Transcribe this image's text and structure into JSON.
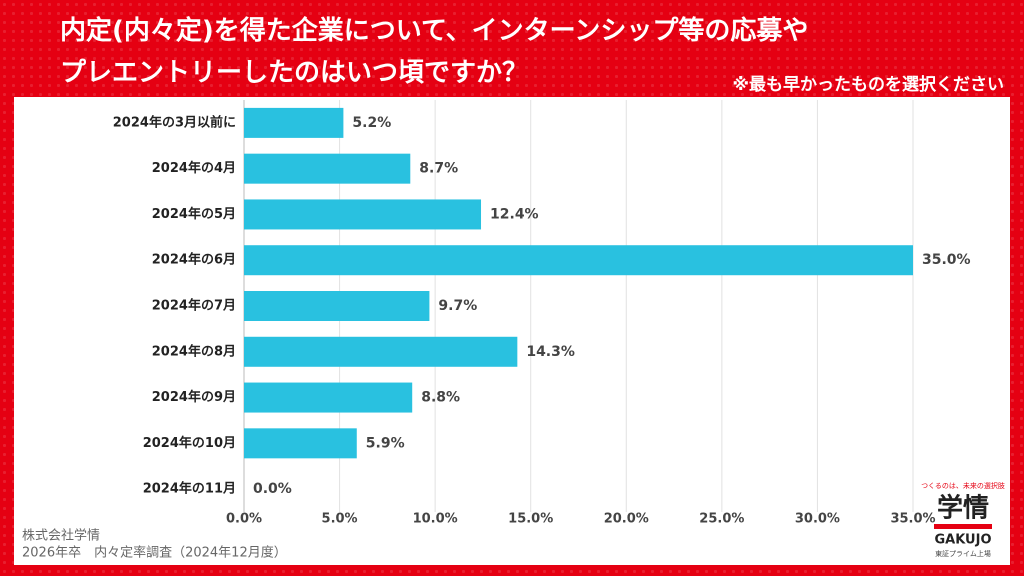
{
  "chart_data": {
    "type": "hbar",
    "title": [
      "内定(内々定)を得た企業について、インターンシップ等の応募や",
      "プレエントリーしたのはいつ頃ですか？"
    ],
    "subtitle": "※最も早かったものを選択ください",
    "categories": [
      "2024年の3月以前に",
      "2024年の4月",
      "2024年の5月",
      "2024年の6月",
      "2024年の7月",
      "2024年の8月",
      "2024年の9月",
      "2024年の10月",
      "2024年の11月"
    ],
    "values": [
      5.2,
      8.7,
      12.4,
      35.0,
      9.7,
      14.3,
      8.8,
      5.9,
      0.0
    ],
    "value_labels": [
      "5.2%",
      "8.7%",
      "12.4%",
      "35.0%",
      "9.7%",
      "14.3%",
      "8.8%",
      "5.9%",
      "0.0%"
    ],
    "color": "#29c1e0",
    "xlim": [
      0,
      35
    ],
    "xticks": [
      {
        "value": 0,
        "label": "0.0%"
      },
      {
        "value": 5,
        "label": "5.0%"
      },
      {
        "value": 10,
        "label": "10.0%"
      },
      {
        "value": 15,
        "label": "15.0%"
      },
      {
        "value": 20,
        "label": "20.0%"
      },
      {
        "value": 25,
        "label": "25.0%"
      },
      {
        "value": 30,
        "label": "30.0%"
      },
      {
        "value": 35,
        "label": "35.0%"
      }
    ],
    "grid": true
  },
  "footer": {
    "company": "株式会社学情",
    "survey": "2026年卒　内々定率調査（2024年12月度）"
  },
  "logo": {
    "tagline": "つくるのは、未来の選択肢",
    "name": "学情",
    "roman": "GAKUJO",
    "listing": "東証プライム上場"
  }
}
